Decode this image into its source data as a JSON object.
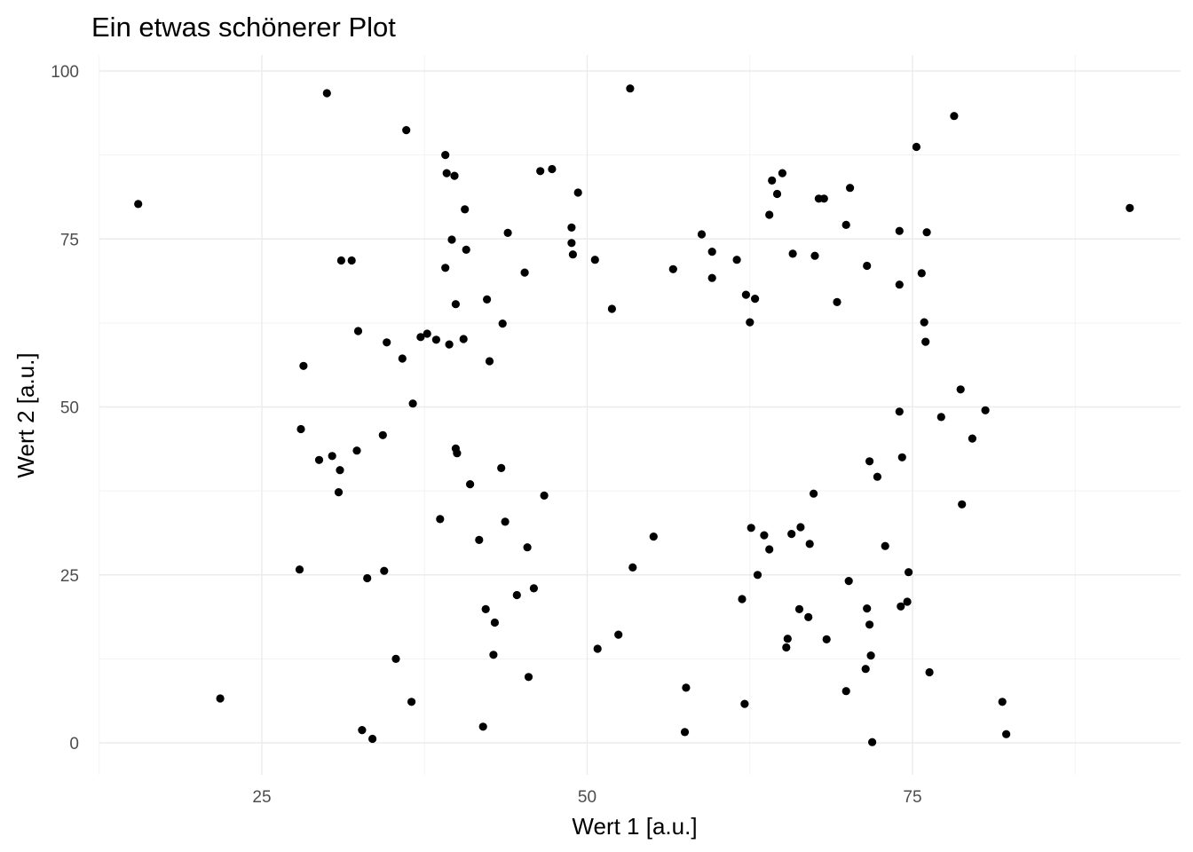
{
  "chart_data": {
    "type": "scatter",
    "title": "Ein etwas schönerer Plot",
    "xlabel": "Wert 1 [a.u.]",
    "ylabel": "Wert 2 [a.u.]",
    "xlim": [
      12.5,
      92.5
    ],
    "ylim": [
      -4.5,
      100.5
    ],
    "x_ticks": [
      25,
      50,
      75
    ],
    "y_ticks": [
      0,
      25,
      50,
      75,
      100
    ],
    "x_minor": [
      12.5,
      37.5,
      62.5,
      87.5
    ],
    "y_minor": [
      12.5,
      37.5,
      62.5,
      87.5
    ],
    "grid": true,
    "point_color": "#000000",
    "points": [
      [
        15.5,
        80.2
      ],
      [
        21.8,
        6.6
      ],
      [
        27.9,
        25.8
      ],
      [
        28.0,
        46.7
      ],
      [
        28.2,
        56.1
      ],
      [
        29.4,
        42.1
      ],
      [
        30.0,
        96.7
      ],
      [
        30.4,
        42.7
      ],
      [
        30.9,
        37.3
      ],
      [
        31.0,
        40.6
      ],
      [
        31.1,
        71.8
      ],
      [
        31.9,
        71.8
      ],
      [
        32.3,
        43.5
      ],
      [
        32.4,
        61.3
      ],
      [
        32.7,
        1.9
      ],
      [
        33.1,
        24.5
      ],
      [
        33.5,
        0.6
      ],
      [
        34.3,
        45.8
      ],
      [
        34.4,
        25.6
      ],
      [
        34.6,
        59.6
      ],
      [
        35.3,
        12.5
      ],
      [
        35.8,
        57.2
      ],
      [
        36.1,
        91.2
      ],
      [
        36.5,
        6.1
      ],
      [
        36.6,
        50.5
      ],
      [
        37.2,
        60.4
      ],
      [
        37.7,
        60.9
      ],
      [
        38.4,
        60.0
      ],
      [
        38.7,
        33.3
      ],
      [
        39.1,
        87.5
      ],
      [
        39.1,
        70.7
      ],
      [
        39.2,
        84.8
      ],
      [
        39.4,
        59.3
      ],
      [
        39.6,
        74.9
      ],
      [
        39.8,
        84.4
      ],
      [
        39.9,
        43.8
      ],
      [
        39.9,
        65.3
      ],
      [
        40.0,
        43.1
      ],
      [
        40.5,
        60.1
      ],
      [
        40.6,
        79.4
      ],
      [
        40.7,
        73.4
      ],
      [
        41.0,
        38.5
      ],
      [
        41.7,
        30.2
      ],
      [
        42.0,
        2.4
      ],
      [
        42.2,
        19.9
      ],
      [
        42.3,
        66.0
      ],
      [
        42.5,
        56.8
      ],
      [
        42.8,
        13.1
      ],
      [
        42.9,
        17.9
      ],
      [
        43.4,
        40.9
      ],
      [
        43.5,
        62.4
      ],
      [
        43.7,
        32.9
      ],
      [
        43.9,
        75.9
      ],
      [
        44.6,
        22.0
      ],
      [
        45.2,
        70.0
      ],
      [
        45.4,
        29.1
      ],
      [
        45.5,
        9.8
      ],
      [
        45.9,
        23.0
      ],
      [
        46.4,
        85.1
      ],
      [
        46.7,
        36.8
      ],
      [
        47.3,
        85.4
      ],
      [
        48.8,
        76.7
      ],
      [
        48.8,
        74.4
      ],
      [
        48.9,
        72.7
      ],
      [
        49.3,
        81.9
      ],
      [
        50.6,
        71.9
      ],
      [
        50.8,
        14.0
      ],
      [
        51.9,
        64.6
      ],
      [
        52.4,
        16.1
      ],
      [
        53.3,
        97.4
      ],
      [
        53.5,
        26.1
      ],
      [
        55.1,
        30.7
      ],
      [
        56.6,
        70.5
      ],
      [
        57.5,
        1.6
      ],
      [
        57.6,
        8.2
      ],
      [
        58.8,
        75.7
      ],
      [
        59.6,
        73.1
      ],
      [
        59.6,
        69.2
      ],
      [
        61.5,
        71.9
      ],
      [
        61.9,
        21.4
      ],
      [
        62.1,
        5.8
      ],
      [
        62.2,
        66.7
      ],
      [
        62.5,
        62.6
      ],
      [
        62.6,
        32.0
      ],
      [
        62.9,
        66.1
      ],
      [
        63.1,
        25.0
      ],
      [
        63.6,
        30.9
      ],
      [
        64.0,
        28.8
      ],
      [
        64.0,
        78.6
      ],
      [
        64.2,
        83.7
      ],
      [
        64.6,
        81.7
      ],
      [
        65.0,
        84.8
      ],
      [
        65.3,
        14.2
      ],
      [
        65.4,
        15.5
      ],
      [
        65.7,
        31.1
      ],
      [
        65.8,
        72.8
      ],
      [
        66.3,
        19.9
      ],
      [
        66.4,
        32.1
      ],
      [
        67.0,
        18.7
      ],
      [
        67.1,
        29.6
      ],
      [
        67.4,
        37.1
      ],
      [
        67.5,
        72.5
      ],
      [
        67.8,
        81.0
      ],
      [
        68.2,
        81.0
      ],
      [
        68.4,
        15.4
      ],
      [
        69.2,
        65.6
      ],
      [
        69.9,
        77.1
      ],
      [
        69.9,
        7.7
      ],
      [
        70.1,
        24.1
      ],
      [
        70.2,
        82.6
      ],
      [
        71.4,
        11.0
      ],
      [
        71.5,
        71.0
      ],
      [
        71.5,
        20.0
      ],
      [
        71.7,
        17.6
      ],
      [
        71.7,
        41.9
      ],
      [
        71.8,
        13.0
      ],
      [
        71.9,
        0.1
      ],
      [
        72.3,
        39.6
      ],
      [
        72.9,
        29.3
      ],
      [
        74.0,
        76.2
      ],
      [
        74.0,
        68.2
      ],
      [
        74.0,
        49.3
      ],
      [
        74.1,
        20.3
      ],
      [
        74.2,
        42.5
      ],
      [
        74.6,
        21.0
      ],
      [
        74.7,
        25.4
      ],
      [
        75.3,
        88.7
      ],
      [
        75.7,
        69.9
      ],
      [
        75.9,
        62.6
      ],
      [
        76.0,
        59.7
      ],
      [
        76.1,
        76.0
      ],
      [
        76.3,
        10.5
      ],
      [
        77.2,
        48.5
      ],
      [
        78.2,
        93.3
      ],
      [
        78.7,
        52.6
      ],
      [
        78.8,
        35.5
      ],
      [
        79.6,
        45.3
      ],
      [
        80.6,
        49.5
      ],
      [
        81.9,
        6.1
      ],
      [
        82.2,
        1.3
      ],
      [
        91.7,
        79.6
      ]
    ]
  }
}
